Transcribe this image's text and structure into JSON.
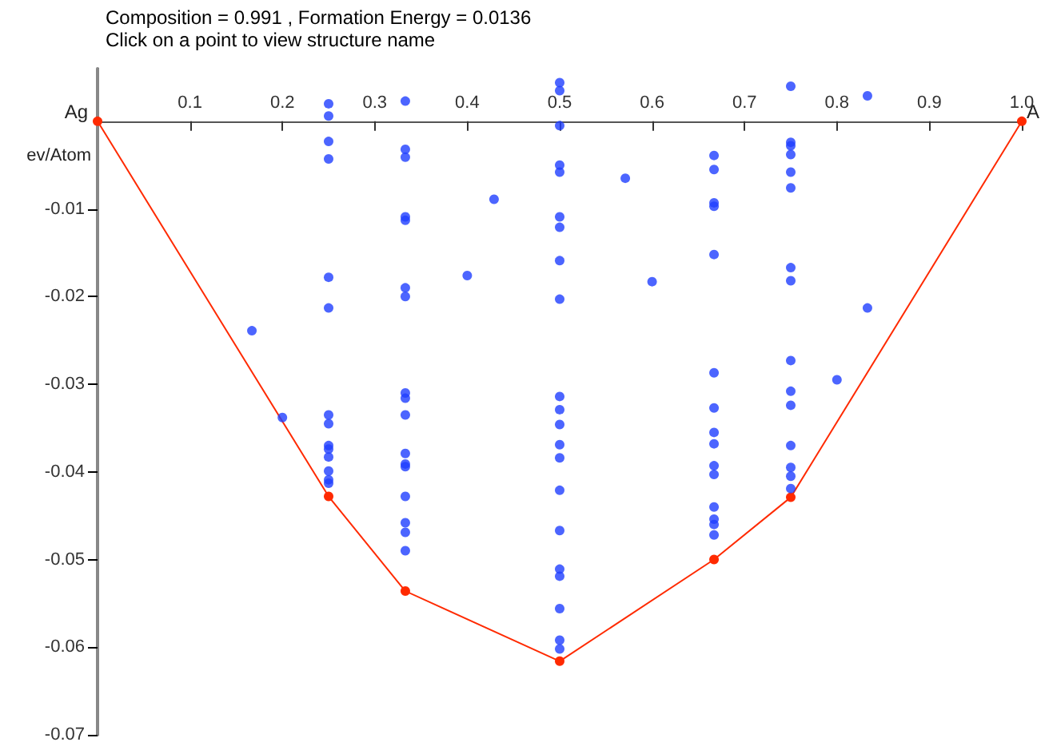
{
  "chart_data": {
    "type": "scatter",
    "title": "Composition = 0.991 , Formation Energy = 0.0136",
    "subtitle": "Click on a point to view structure name",
    "ylabel": "ev/Atom",
    "annotations": [
      {
        "text": "Ag",
        "x": 0,
        "y": 0
      },
      {
        "text": "A",
        "x": 1,
        "y": 0
      }
    ],
    "xlim": [
      0,
      1
    ],
    "xticks": [
      0.1,
      0.2,
      0.3,
      0.4,
      0.5,
      0.6,
      0.7,
      0.8,
      0.9,
      {
        "value": 1,
        "label": "1.0"
      }
    ],
    "ylim": [
      -0.07,
      0.006
    ],
    "yticks": [
      -0.07,
      -0.06,
      -0.05,
      -0.04,
      -0.03,
      -0.02,
      -0.01
    ],
    "grid": false,
    "legend": false,
    "marker": "circle",
    "series": [
      {
        "color": "#1f3fff",
        "x": [
          0.167,
          0.2,
          0.25,
          0.25,
          0.25,
          0.25,
          0.25,
          0.25,
          0.25,
          0.25,
          0.25,
          0.25,
          0.25,
          0.25,
          0.25,
          0.25,
          0.333,
          0.333,
          0.333,
          0.333,
          0.333,
          0.333,
          0.333,
          0.333,
          0.333,
          0.333,
          0.333,
          0.333,
          0.333,
          0.333,
          0.333,
          0.333,
          0.333,
          0.4,
          0.429,
          0.5,
          0.5,
          0.5,
          0.5,
          0.5,
          0.5,
          0.5,
          0.5,
          0.5,
          0.5,
          0.5,
          0.5,
          0.5,
          0.5,
          0.5,
          0.5,
          0.5,
          0.5,
          0.5,
          0.5,
          0.5,
          0.571,
          0.6,
          0.667,
          0.667,
          0.667,
          0.667,
          0.667,
          0.667,
          0.667,
          0.667,
          0.667,
          0.667,
          0.667,
          0.667,
          0.667,
          0.667,
          0.667,
          0.75,
          0.75,
          0.75,
          0.75,
          0.75,
          0.75,
          0.75,
          0.75,
          0.75,
          0.75,
          0.75,
          0.75,
          0.75,
          0.75,
          0.75,
          0.8,
          0.833,
          0.833
        ],
        "values": [
          -0.0239,
          -0.0338,
          0.002,
          0.0006,
          -0.0023,
          -0.0043,
          -0.0178,
          -0.0213,
          -0.0335,
          -0.0345,
          -0.037,
          -0.0374,
          -0.0383,
          -0.0399,
          -0.0409,
          -0.0413,
          0.0023,
          -0.0032,
          -0.0041,
          -0.0109,
          -0.0113,
          -0.019,
          -0.02,
          -0.031,
          -0.0316,
          -0.0335,
          -0.0379,
          -0.0391,
          -0.0394,
          -0.0428,
          -0.0458,
          -0.0469,
          -0.049,
          -0.0176,
          -0.0089,
          0.0044,
          0.0035,
          -0.0005,
          -0.005,
          -0.0058,
          -0.0109,
          -0.0121,
          -0.0159,
          -0.0203,
          -0.0314,
          -0.0329,
          -0.0346,
          -0.0369,
          -0.0384,
          -0.0421,
          -0.0467,
          -0.0511,
          -0.0519,
          -0.0556,
          -0.0592,
          -0.0602,
          -0.0065,
          -0.0183,
          -0.0039,
          -0.0055,
          -0.0093,
          -0.0097,
          -0.0152,
          -0.0287,
          -0.0327,
          -0.0355,
          -0.0368,
          -0.0393,
          -0.0403,
          -0.044,
          -0.0454,
          -0.046,
          -0.0472,
          0.004,
          -0.0024,
          -0.0028,
          -0.0038,
          -0.0058,
          -0.0076,
          -0.0167,
          -0.0182,
          -0.0273,
          -0.0308,
          -0.0324,
          -0.037,
          -0.0395,
          -0.0405,
          -0.0419,
          -0.0295,
          0.0029,
          -0.0213
        ]
      },
      {
        "type": "line",
        "color": "#ff2a00",
        "x": [
          0,
          0.25,
          0.333,
          0.5,
          0.667,
          0.75,
          1
        ],
        "values": [
          0,
          -0.0428,
          -0.0536,
          -0.0616,
          -0.05,
          -0.0429,
          0
        ]
      }
    ]
  }
}
